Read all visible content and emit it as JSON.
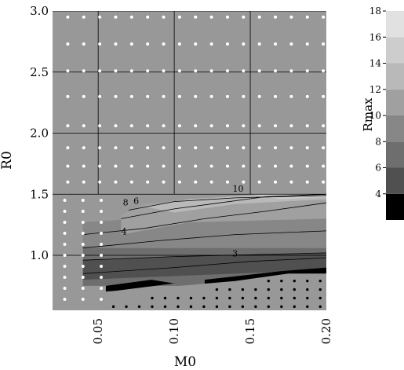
{
  "chart_data": {
    "type": "heatmap",
    "title": "",
    "xlabel": "M0",
    "ylabel": "R0",
    "xlim": [
      0.02,
      0.2
    ],
    "ylim": [
      0.55,
      3.0
    ],
    "x_ticks": [
      {
        "value": 0.05,
        "label": "0.05"
      },
      {
        "value": 0.1,
        "label": "0.10"
      },
      {
        "value": 0.15,
        "label": "0.15"
      },
      {
        "value": 0.2,
        "label": "0.20"
      }
    ],
    "y_ticks": [
      {
        "value": 1.0,
        "label": "1.0"
      },
      {
        "value": 1.5,
        "label": "1.5"
      },
      {
        "value": 2.0,
        "label": "2.0"
      },
      {
        "value": 2.5,
        "label": "2.5"
      },
      {
        "value": 3.0,
        "label": "3.0"
      }
    ],
    "colorbar": {
      "title": "Rmax",
      "range": [
        2,
        18
      ],
      "levels": [
        2,
        4,
        6,
        8,
        10,
        12,
        14,
        16,
        18
      ],
      "tick_labels": [
        "4",
        "6",
        "8",
        "10",
        "12",
        "14",
        "16",
        "18"
      ],
      "colors": [
        "#000000",
        "#505050",
        "#6e6e6e",
        "#878787",
        "#a0a0a0",
        "#b9b9b9",
        "#cdcdcd",
        "#e1e1e1",
        "#f2f2f2"
      ]
    },
    "contour_labels": [
      {
        "label": "10",
        "x": 0.142,
        "y": 1.52
      },
      {
        "label": "6",
        "x": 0.075,
        "y": 1.42
      },
      {
        "label": "8",
        "x": 0.068,
        "y": 1.41
      },
      {
        "label": "4",
        "x": 0.067,
        "y": 1.17
      },
      {
        "label": "3",
        "x": 0.14,
        "y": 0.99
      }
    ],
    "colors": {
      "background_field": "#989898",
      "white_markers": "#ffffff",
      "black_markers": "#000000"
    }
  }
}
